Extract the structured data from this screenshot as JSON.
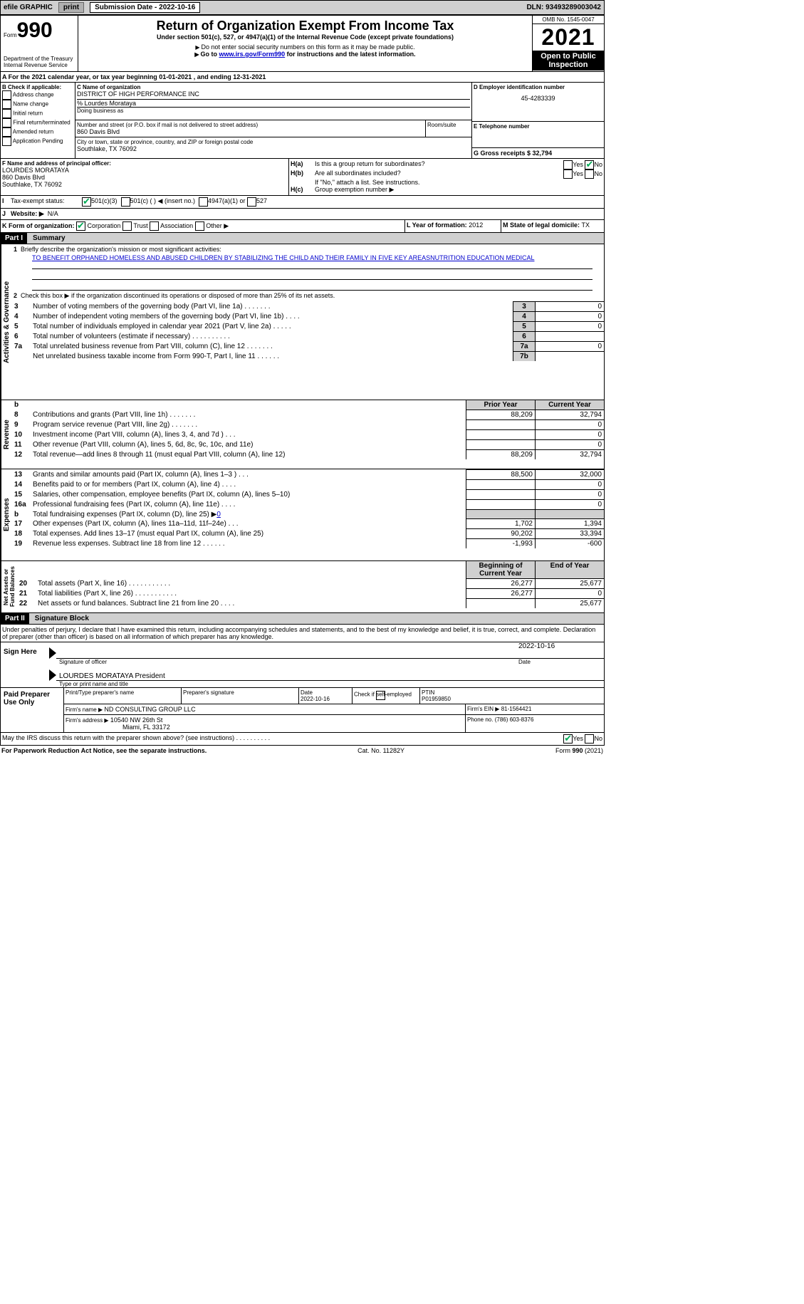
{
  "topbar": {
    "efile": "efile GRAPHIC",
    "print": "print",
    "sub_label": "Submission Date - ",
    "sub_date": "2022-10-16",
    "dln_label": "DLN: ",
    "dln": "93493289003042"
  },
  "header": {
    "form": "Form",
    "form_no": "990",
    "dept": "Department of the Treasury",
    "irs": "Internal Revenue Service",
    "title": "Return of Organization Exempt From Income Tax",
    "sub1": "Under section 501(c), 527, or 4947(a)(1) of the Internal Revenue Code (except private foundations)",
    "sub2": "Do not enter social security numbers on this form as it may be made public.",
    "sub3": "Go to ",
    "link": "www.irs.gov/Form990",
    "sub3b": " for instructions and the latest information.",
    "omb": "OMB No. 1545-0047",
    "year": "2021",
    "open": "Open to Public Inspection"
  },
  "periodA": {
    "line": "A For the 2021 calendar year, or tax year beginning ",
    "d1": "01-01-2021",
    "mid": " , and ending ",
    "d2": "12-31-2021"
  },
  "boxB": {
    "label": "B Check if applicable:",
    "items": [
      "Address change",
      "Name change",
      "Initial return",
      "Final return/terminated",
      "Amended return",
      "Application Pending"
    ]
  },
  "boxC": {
    "name_lbl": "C Name of organization",
    "name": "DISTRICT OF HIGH PERFORMANCE INC",
    "care": "% Lourdes Morataya",
    "dba": "Doing business as",
    "addr_lbl": "Number and street (or P.O. box if mail is not delivered to street address)",
    "room": "Room/suite",
    "addr": "860 Davis Blvd",
    "city_lbl": "City or town, state or province, country, and ZIP or foreign postal code",
    "city": "Southlake, TX  76092"
  },
  "boxD": {
    "lbl": "D Employer identification number",
    "val": "45-4283339"
  },
  "boxE": {
    "lbl": "E Telephone number"
  },
  "boxG": {
    "lbl": "G Gross receipts $ ",
    "val": "32,794"
  },
  "boxF": {
    "lbl": "F Name and address of principal officer:",
    "name": "LOURDES MORATAYA",
    "addr": "860 Davis Blvd",
    "city": "Southlake, TX  76092"
  },
  "boxH": {
    "ha": "H(a)",
    "ha_txt": "Is this a group return for subordinates?",
    "hb": "H(b)",
    "hb_txt": "Are all subordinates included?",
    "hb_note": "If \"No,\" attach a list. See instructions.",
    "hc": "H(c)",
    "hc_txt": "Group exemption number ▶"
  },
  "boxI": {
    "lbl": "I",
    "txt": "Tax-exempt status:",
    "o1": "501(c)(3)",
    "o2": "501(c) (  ) ◀ (insert no.)",
    "o3": "4947(a)(1) or",
    "o4": "527"
  },
  "boxJ": {
    "lbl": "J",
    "txt": "Website: ▶",
    "val": "N/A"
  },
  "boxK": {
    "lbl": "K Form of organization:",
    "o1": "Corporation",
    "o2": "Trust",
    "o3": "Association",
    "o4": "Other ▶"
  },
  "boxL": {
    "lbl": "L Year of formation: ",
    "val": "2012"
  },
  "boxM": {
    "lbl": "M State of legal domicile: ",
    "val": "TX"
  },
  "part1": {
    "hdr": "Part I",
    "title": "Summary",
    "vtext1": "Activities & Governance",
    "vtext2": "Revenue",
    "vtext3": "Expenses",
    "vtext4": "Net Assets or Fund Balances",
    "l1": "Briefly describe the organization's mission or most significant activities:",
    "mission": "TO BENEFIT ORPHANED HOMELESS AND ABUSED CHILDREN BY STABILIZING THE CHILD AND THEIR FAMILY IN FIVE KEY AREASNUTRITION EDUCATION MEDICAL",
    "l2": "Check this box ▶      if the organization discontinued its operations or disposed of more than 25% of its net assets.",
    "rows_ag": [
      {
        "n": "3",
        "t": "Number of voting members of the governing body (Part VI, line 1a)   .     .     .     .     .     .     .",
        "b": "3",
        "v": "0"
      },
      {
        "n": "4",
        "t": "Number of independent voting members of the governing body (Part VI, line 1b)   .     .     .     .",
        "b": "4",
        "v": "0"
      },
      {
        "n": "5",
        "t": "Total number of individuals employed in calendar year 2021 (Part V, line 2a)   .     .     .     .     .",
        "b": "5",
        "v": "0"
      },
      {
        "n": "6",
        "t": "Total number of volunteers (estimate if necessary)     .     .     .     .     .     .     .     .     .     .",
        "b": "6",
        "v": ""
      },
      {
        "n": "7a",
        "t": "Total unrelated business revenue from Part VIII, column (C), line 12   .     .     .     .     .     .     .",
        "b": "7a",
        "v": "0"
      },
      {
        "n": "",
        "t": "Net unrelated business taxable income from Form 990-T, Part I, line 11   .     .     .     .     .     .",
        "b": "7b",
        "v": ""
      }
    ],
    "col_prior": "Prior Year",
    "col_curr": "Current Year",
    "rows_rev": [
      {
        "n": "8",
        "t": "Contributions and grants (Part VIII, line 1h)   .     .     .     .     .     .     .",
        "p": "88,209",
        "c": "32,794"
      },
      {
        "n": "9",
        "t": "Program service revenue (Part VIII, line 2g)   .     .     .     .     .     .     .",
        "p": "",
        "c": "0"
      },
      {
        "n": "10",
        "t": "Investment income (Part VIII, column (A), lines 3, 4, and 7d )   .     .     .",
        "p": "",
        "c": "0"
      },
      {
        "n": "11",
        "t": "Other revenue (Part VIII, column (A), lines 5, 6d, 8c, 9c, 10c, and 11e)",
        "p": "",
        "c": "0"
      },
      {
        "n": "12",
        "t": "Total revenue—add lines 8 through 11 (must equal Part VIII, column (A), line 12)",
        "p": "88,209",
        "c": "32,794"
      }
    ],
    "rows_exp": [
      {
        "n": "13",
        "t": "Grants and similar amounts paid (Part IX, column (A), lines 1–3 )   .     .     .",
        "p": "88,500",
        "c": "32,000"
      },
      {
        "n": "14",
        "t": "Benefits paid to or for members (Part IX, column (A), line 4)   .     .     .     .",
        "p": "",
        "c": "0"
      },
      {
        "n": "15",
        "t": "Salaries, other compensation, employee benefits (Part IX, column (A), lines 5–10)",
        "p": "",
        "c": "0"
      },
      {
        "n": "16a",
        "t": "Professional fundraising fees (Part IX, column (A), line 11e)   .     .     .     .",
        "p": "",
        "c": "0"
      },
      {
        "n": "b",
        "t": "Total fundraising expenses (Part IX, column (D), line 25) ▶",
        "p": "",
        "c": "",
        "gray": true,
        "link": "0"
      },
      {
        "n": "17",
        "t": "Other expenses (Part IX, column (A), lines 11a–11d, 11f–24e)   .     .     .",
        "p": "1,702",
        "c": "1,394"
      },
      {
        "n": "18",
        "t": "Total expenses. Add lines 13–17 (must equal Part IX, column (A), line 25)",
        "p": "90,202",
        "c": "33,394"
      },
      {
        "n": "19",
        "t": "Revenue less expenses. Subtract line 18 from line 12   .     .     .     .     .     .",
        "p": "-1,993",
        "c": "-600"
      }
    ],
    "col_beg": "Beginning of Current Year",
    "col_end": "End of Year",
    "rows_na": [
      {
        "n": "20",
        "t": "Total assets (Part X, line 16)   .     .     .     .     .     .     .     .     .     .     .",
        "p": "26,277",
        "c": "25,677"
      },
      {
        "n": "21",
        "t": "Total liabilities (Part X, line 26)   .     .     .     .     .     .     .     .     .     .     .",
        "p": "26,277",
        "c": "0"
      },
      {
        "n": "22",
        "t": "Net assets or fund balances. Subtract line 21 from line 20   .     .     .     .",
        "p": "",
        "c": "25,677"
      }
    ]
  },
  "part2": {
    "hdr": "Part II",
    "title": "Signature Block",
    "decl": "Under penalties of perjury, I declare that I have examined this return, including accompanying schedules and statements, and to the best of my knowledge and belief, it is true, correct, and complete. Declaration of preparer (other than officer) is based on all information of which preparer has any knowledge.",
    "sign": "Sign Here",
    "sig_lbl": "Signature of officer",
    "date": "Date",
    "sig_date": "2022-10-16",
    "name": "LOURDES MORATAYA  President",
    "name_lbl": "Type or print name and title",
    "paid": "Paid Preparer Use Only",
    "pp_name": "Print/Type preparer's name",
    "pp_sig": "Preparer's signature",
    "pp_date": "Date",
    "pp_date_v": "2022-10-16",
    "pp_chk": "Check        if self-employed",
    "ptin_lbl": "PTIN",
    "ptin": "P01959850",
    "firm_lbl": "Firm's name    ▶",
    "firm": "ND CONSULTING GROUP LLC",
    "ein_lbl": "Firm's EIN ▶ ",
    "ein": "81-1564421",
    "faddr_lbl": "Firm's address ▶",
    "faddr": "10540 NW 26th St",
    "fcity": "Miami, FL  33172",
    "phone_lbl": "Phone no. ",
    "phone": "(786) 603-8376",
    "discuss": "May the IRS discuss this return with the preparer shown above? (see instructions)    .     .     .     .     .     .     .     .     .     .",
    "yes": "Yes",
    "no": "No"
  },
  "footer": {
    "pra": "For Paperwork Reduction Act Notice, see the separate instructions.",
    "cat": "Cat. No. 11282Y",
    "form": "Form ",
    "form_no": "990",
    "yr": " (2021)"
  }
}
